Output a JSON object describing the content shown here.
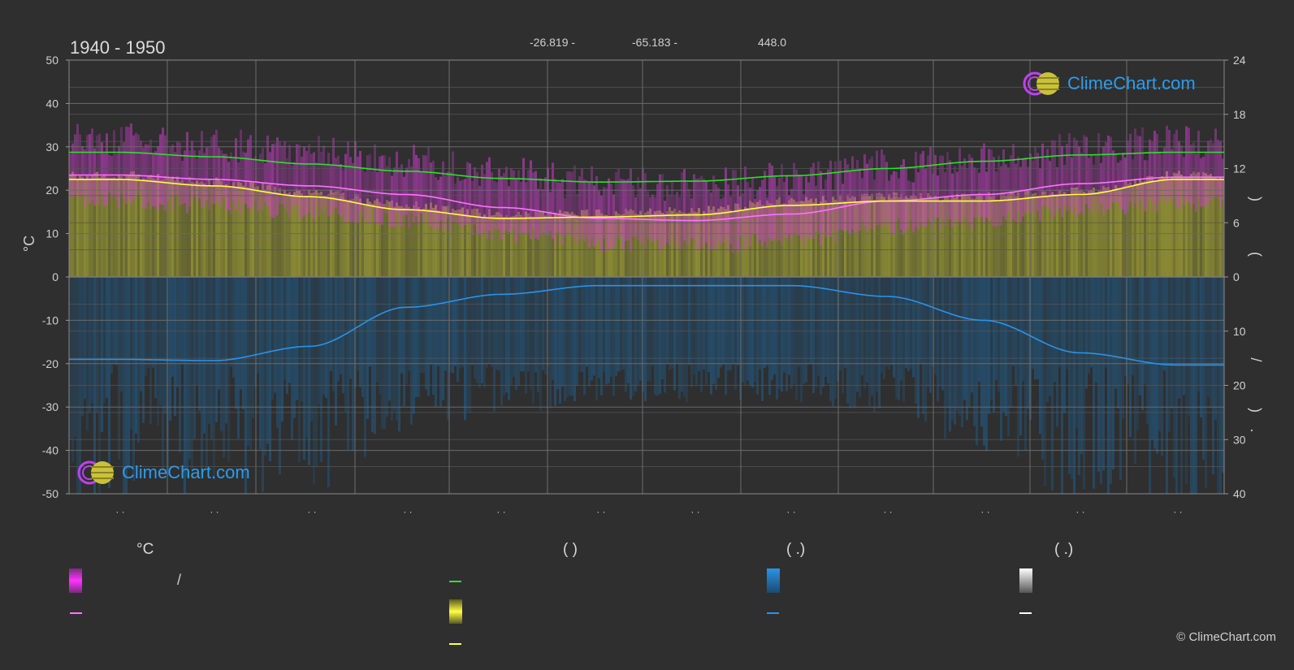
{
  "header": {
    "title": "1940 - 1950",
    "lat": "-26.819 -",
    "lon": "-65.183 -",
    "elev": "448.0"
  },
  "colors": {
    "bg": "#2f2f2f",
    "daylight_line": "#2ee02e",
    "max_temp_line": "#ff73ff",
    "sunshine_line": "#ffff44",
    "precip_line": "#2b93e8",
    "snow_line": "#ffffff",
    "temp_band": "#d63fd6",
    "sun_band": "#c9c939",
    "rain_band": "#1f5f8f"
  },
  "chart_data": {
    "type": "line",
    "left_axis": {
      "label": "°C",
      "ticks": [
        50,
        40,
        30,
        20,
        10,
        0,
        -10,
        -20,
        -30,
        -40,
        -50
      ],
      "ylim": [
        -50,
        50
      ]
    },
    "right_axis_top": {
      "label_parts": [
        ")",
        "("
      ],
      "ticks": [
        24,
        18,
        12,
        6,
        0
      ],
      "ylim": [
        0,
        24
      ]
    },
    "right_axis_bottom": {
      "label_parts": [
        "/",
        ")",
        "."
      ],
      "ticks": [
        0,
        10,
        20,
        30,
        40
      ],
      "ylim": [
        0,
        40
      ]
    },
    "x_ticks": [
      "· ·",
      "· ·",
      "· ·",
      "· ·",
      "· ·",
      "· ·",
      "· ·",
      "· ·",
      "· ·",
      "· ·",
      "· ·",
      "· ·"
    ],
    "grid": true,
    "series": [
      {
        "key": "daylight",
        "axis": "right_top",
        "values": [
          13.8,
          13.3,
          12.5,
          11.7,
          10.9,
          10.5,
          10.6,
          11.2,
          12.0,
          12.8,
          13.5,
          13.8
        ]
      },
      {
        "key": "max_temp_mean",
        "axis": "left",
        "values": [
          23.5,
          22.5,
          21.0,
          19.0,
          16.0,
          13.5,
          13.0,
          14.5,
          17.5,
          19.0,
          21.5,
          23.0
        ]
      },
      {
        "key": "sunshine",
        "axis": "left",
        "values": [
          22.5,
          21.0,
          18.5,
          15.5,
          13.5,
          13.8,
          14.3,
          16.5,
          17.5,
          17.5,
          19.0,
          22.5
        ]
      },
      {
        "key": "precip",
        "axis": "left",
        "values": [
          -19.0,
          -19.3,
          -16.0,
          -7.0,
          -4.0,
          -2.0,
          -2.0,
          -2.0,
          -4.5,
          -10.0,
          -17.5,
          -20.3
        ]
      }
    ]
  },
  "legend": {
    "col1_head": "°C",
    "col1_row1_sep": "/",
    "col2_head": "(          )",
    "col3_head": "(   .)",
    "col4_head": "(   .)"
  },
  "logos": {
    "text": "ClimeChart.com"
  },
  "copyright": "© ClimeChart.com"
}
